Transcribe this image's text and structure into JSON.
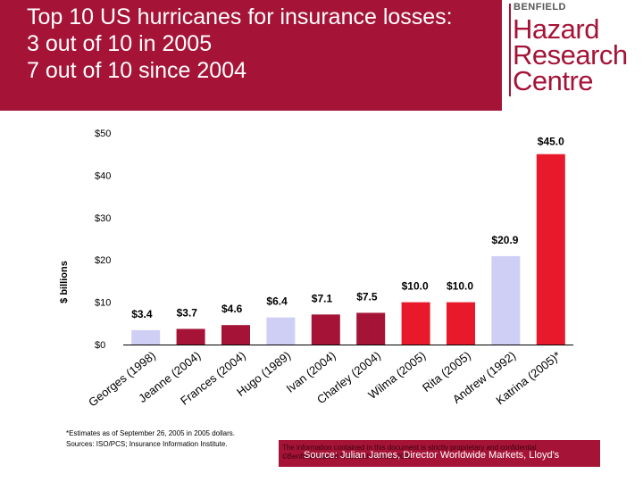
{
  "slide": {
    "title_lines": [
      "Top 10 US hurricanes for insurance losses:",
      "3 out of 10 in 2005",
      "7 out of 10 since 2004"
    ],
    "footnote_lines": [
      "*Estimates as of September 26, 2005 in 2005 dollars.",
      "Sources: ISO/PCS; Insurance Information Institute."
    ],
    "disclaimer_lines": [
      "The information contained in this document is strictly proprietary and confidential",
      "©Benfield Hazard Research Centre 2005"
    ],
    "source": "Source: Julian James, Director Worldwide Markets, Lloyd's"
  },
  "logo": {
    "small": "BENFIELD",
    "words": [
      "Hazard",
      "Research",
      "Centre"
    ],
    "color": "#a51437"
  },
  "colors": {
    "header_bg": "#a51437",
    "lavender": "#cfcff5",
    "crimson": "#a51437",
    "red": "#e8192a"
  },
  "chart_data": {
    "type": "bar",
    "ylabel": "$ billions",
    "ylim": [
      0,
      50
    ],
    "yticks": [
      0,
      10,
      20,
      30,
      40,
      50
    ],
    "ytick_labels": [
      "$0",
      "$10",
      "$20",
      "$30",
      "$40",
      "$50"
    ],
    "grid": false,
    "categories": [
      "Georges (1998)",
      "Jeanne (2004)",
      "Frances (2004)",
      "Hugo (1989)",
      "Ivan (2004)",
      "Charley (2004)",
      "Wilma (2005)",
      "Rita (2005)",
      "Andrew (1992)",
      "Katrina (2005)*"
    ],
    "values": [
      3.4,
      3.7,
      4.6,
      6.4,
      7.1,
      7.5,
      10.0,
      10.0,
      20.9,
      45.0
    ],
    "value_labels": [
      "$3.4",
      "$3.7",
      "$4.6",
      "$6.4",
      "$7.1",
      "$7.5",
      "$10.0",
      "$10.0",
      "$20.9",
      "$45.0"
    ],
    "bar_colors": [
      "lavender",
      "crimson",
      "crimson",
      "lavender",
      "crimson",
      "crimson",
      "red",
      "red",
      "lavender",
      "red"
    ]
  }
}
